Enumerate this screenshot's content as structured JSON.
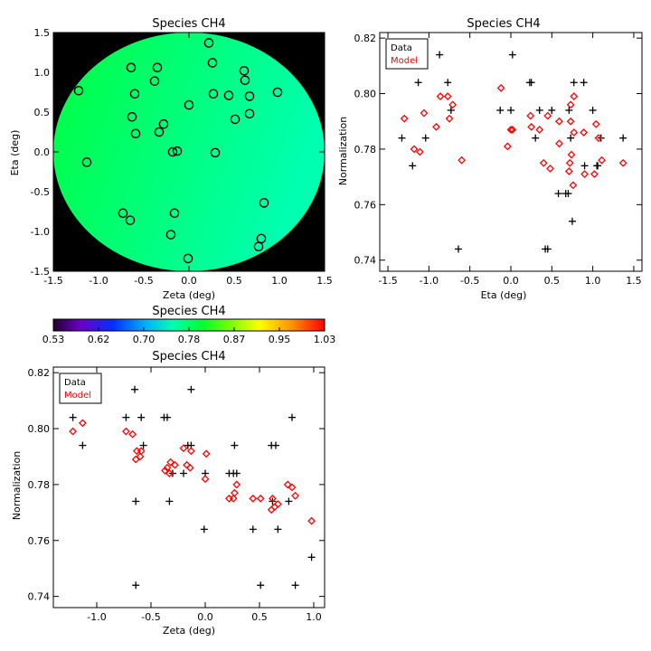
{
  "chart_data": [
    {
      "id": "map",
      "type": "scatter",
      "title": "Species CH4",
      "xlabel": "Zeta (deg)",
      "ylabel": "Eta (deg)",
      "xlim": [
        -1.5,
        1.5
      ],
      "ylim": [
        -1.5,
        1.5
      ],
      "xticks": [
        "-1.5",
        "-1.0",
        "-0.5",
        "0.0",
        "0.5",
        "1.0",
        "1.5"
      ],
      "yticks": [
        "-1.5",
        "-1.0",
        "-0.5",
        "0.0",
        "0.5",
        "1.0",
        "1.5"
      ],
      "background_color": "#000000",
      "disk_colors": [
        "#00ff40",
        "#00ffb0"
      ],
      "points": [
        [
          -1.22,
          0.77
        ],
        [
          -1.13,
          -0.13
        ],
        [
          -0.73,
          -0.77
        ],
        [
          -0.65,
          -0.86
        ],
        [
          -0.64,
          1.06
        ],
        [
          -0.63,
          0.44
        ],
        [
          -0.6,
          0.73
        ],
        [
          -0.59,
          0.23
        ],
        [
          -0.38,
          0.89
        ],
        [
          -0.35,
          1.06
        ],
        [
          -0.33,
          0.25
        ],
        [
          -0.28,
          0.35
        ],
        [
          -0.2,
          -1.04
        ],
        [
          -0.16,
          -0.77
        ],
        [
          -0.18,
          0.0
        ],
        [
          -0.13,
          0.01
        ],
        [
          -0.01,
          -1.34
        ],
        [
          0.0,
          0.59
        ],
        [
          0.22,
          1.37
        ],
        [
          0.26,
          1.12
        ],
        [
          0.27,
          0.73
        ],
        [
          0.29,
          -0.01
        ],
        [
          0.44,
          0.71
        ],
        [
          0.51,
          0.41
        ],
        [
          0.61,
          1.02
        ],
        [
          0.62,
          0.9
        ],
        [
          0.67,
          0.48
        ],
        [
          0.67,
          0.7
        ],
        [
          0.77,
          -1.19
        ],
        [
          0.8,
          -1.09
        ],
        [
          0.83,
          -0.64
        ],
        [
          0.98,
          0.75
        ]
      ]
    },
    {
      "id": "eta",
      "type": "scatter",
      "title": "Species CH4",
      "xlabel": "Eta (deg)",
      "ylabel": "Normalization",
      "xlim": [
        -1.6,
        1.6
      ],
      "ylim": [
        0.736,
        0.822
      ],
      "xticks": [
        "-1.5",
        "-1.0",
        "-0.5",
        "0.0",
        "0.5",
        "1.0",
        "1.5"
      ],
      "yticks": [
        "0.74",
        "0.76",
        "0.78",
        "0.80",
        "0.82"
      ],
      "legend": [
        "Data",
        "Model"
      ],
      "series": [
        {
          "name": "Data",
          "color": "#000000",
          "marker": "plus",
          "points": [
            [
              -1.33,
              0.784
            ],
            [
              -1.2,
              0.774
            ],
            [
              -1.13,
              0.804
            ],
            [
              -1.04,
              0.784
            ],
            [
              -0.87,
              0.814
            ],
            [
              -0.77,
              0.804
            ],
            [
              -0.73,
              0.794
            ],
            [
              -0.64,
              0.744
            ],
            [
              -0.13,
              0.794
            ],
            [
              0.0,
              0.794
            ],
            [
              0.02,
              0.814
            ],
            [
              0.23,
              0.804
            ],
            [
              0.25,
              0.804
            ],
            [
              0.3,
              0.784
            ],
            [
              0.35,
              0.794
            ],
            [
              0.42,
              0.744
            ],
            [
              0.45,
              0.744
            ],
            [
              0.5,
              0.794
            ],
            [
              0.58,
              0.764
            ],
            [
              0.67,
              0.764
            ],
            [
              0.7,
              0.764
            ],
            [
              0.71,
              0.794
            ],
            [
              0.73,
              0.784
            ],
            [
              0.75,
              0.754
            ],
            [
              0.77,
              0.804
            ],
            [
              0.89,
              0.804
            ],
            [
              0.9,
              0.774
            ],
            [
              1.0,
              0.794
            ],
            [
              1.05,
              0.774
            ],
            [
              1.06,
              0.774
            ],
            [
              1.1,
              0.784
            ],
            [
              1.37,
              0.784
            ]
          ]
        },
        {
          "name": "Model",
          "color": "#ff0000",
          "marker": "diamond",
          "points": [
            [
              -1.3,
              0.791
            ],
            [
              -1.18,
              0.78
            ],
            [
              -1.11,
              0.779
            ],
            [
              -1.06,
              0.793
            ],
            [
              -0.91,
              0.788
            ],
            [
              -0.86,
              0.799
            ],
            [
              -0.77,
              0.799
            ],
            [
              -0.75,
              0.791
            ],
            [
              -0.71,
              0.796
            ],
            [
              -0.6,
              0.776
            ],
            [
              -0.12,
              0.802
            ],
            [
              -0.04,
              0.781
            ],
            [
              0.0,
              0.787
            ],
            [
              0.02,
              0.787
            ],
            [
              0.24,
              0.792
            ],
            [
              0.25,
              0.788
            ],
            [
              0.35,
              0.787
            ],
            [
              0.4,
              0.775
            ],
            [
              0.45,
              0.792
            ],
            [
              0.48,
              0.773
            ],
            [
              0.59,
              0.782
            ],
            [
              0.59,
              0.79
            ],
            [
              0.71,
              0.772
            ],
            [
              0.72,
              0.775
            ],
            [
              0.73,
              0.79
            ],
            [
              0.73,
              0.796
            ],
            [
              0.74,
              0.778
            ],
            [
              0.76,
              0.767
            ],
            [
              0.77,
              0.786
            ],
            [
              0.77,
              0.799
            ],
            [
              0.89,
              0.786
            ],
            [
              0.9,
              0.771
            ],
            [
              1.02,
              0.771
            ],
            [
              1.04,
              0.789
            ],
            [
              1.07,
              0.784
            ],
            [
              1.11,
              0.776
            ],
            [
              1.37,
              0.775
            ]
          ]
        }
      ]
    },
    {
      "id": "zeta",
      "type": "scatter",
      "title": "Species CH4",
      "xlabel": "Zeta (deg)",
      "ylabel": "Normalization",
      "xlim": [
        -1.4,
        1.1
      ],
      "ylim": [
        0.736,
        0.822
      ],
      "xticks": [
        "-1.0",
        "-0.5",
        "0.0",
        "0.5",
        "1.0"
      ],
      "yticks": [
        "0.74",
        "0.76",
        "0.78",
        "0.80",
        "0.82"
      ],
      "legend": [
        "Data",
        "Model"
      ],
      "series": [
        {
          "name": "Data",
          "color": "#000000",
          "marker": "plus",
          "points": [
            [
              -1.22,
              0.804
            ],
            [
              -1.13,
              0.794
            ],
            [
              -0.73,
              0.804
            ],
            [
              -0.65,
              0.814
            ],
            [
              -0.64,
              0.744
            ],
            [
              -0.64,
              0.774
            ],
            [
              -0.59,
              0.804
            ],
            [
              -0.57,
              0.794
            ],
            [
              -0.38,
              0.804
            ],
            [
              -0.35,
              0.804
            ],
            [
              -0.33,
              0.774
            ],
            [
              -0.3,
              0.784
            ],
            [
              -0.2,
              0.784
            ],
            [
              -0.16,
              0.794
            ],
            [
              -0.13,
              0.814
            ],
            [
              -0.13,
              0.794
            ],
            [
              -0.01,
              0.764
            ],
            [
              0.0,
              0.784
            ],
            [
              0.22,
              0.784
            ],
            [
              0.26,
              0.784
            ],
            [
              0.27,
              0.794
            ],
            [
              0.29,
              0.784
            ],
            [
              0.44,
              0.764
            ],
            [
              0.51,
              0.744
            ],
            [
              0.61,
              0.794
            ],
            [
              0.62,
              0.774
            ],
            [
              0.65,
              0.794
            ],
            [
              0.67,
              0.764
            ],
            [
              0.77,
              0.774
            ],
            [
              0.8,
              0.804
            ],
            [
              0.83,
              0.744
            ],
            [
              0.98,
              0.754
            ]
          ]
        },
        {
          "name": "Model",
          "color": "#ff0000",
          "marker": "diamond",
          "points": [
            [
              -1.22,
              0.799
            ],
            [
              -1.13,
              0.802
            ],
            [
              -0.73,
              0.799
            ],
            [
              -0.67,
              0.798
            ],
            [
              -0.64,
              0.789
            ],
            [
              -0.63,
              0.792
            ],
            [
              -0.6,
              0.79
            ],
            [
              -0.59,
              0.792
            ],
            [
              -0.37,
              0.785
            ],
            [
              -0.35,
              0.786
            ],
            [
              -0.33,
              0.784
            ],
            [
              -0.32,
              0.788
            ],
            [
              -0.28,
              0.787
            ],
            [
              -0.2,
              0.793
            ],
            [
              -0.17,
              0.787
            ],
            [
              -0.14,
              0.786
            ],
            [
              -0.13,
              0.792
            ],
            [
              0.0,
              0.782
            ],
            [
              0.01,
              0.791
            ],
            [
              0.22,
              0.775
            ],
            [
              0.26,
              0.775
            ],
            [
              0.27,
              0.777
            ],
            [
              0.29,
              0.78
            ],
            [
              0.44,
              0.775
            ],
            [
              0.51,
              0.775
            ],
            [
              0.61,
              0.771
            ],
            [
              0.62,
              0.775
            ],
            [
              0.64,
              0.772
            ],
            [
              0.67,
              0.773
            ],
            [
              0.76,
              0.78
            ],
            [
              0.8,
              0.779
            ],
            [
              0.83,
              0.776
            ],
            [
              0.98,
              0.767
            ]
          ]
        }
      ]
    }
  ],
  "colorbar": {
    "title": "Species CH4",
    "labels": [
      "0.53",
      "0.62",
      "0.70",
      "0.78",
      "0.87",
      "0.95",
      "1.03"
    ],
    "min": 0.53,
    "max": 1.03
  }
}
